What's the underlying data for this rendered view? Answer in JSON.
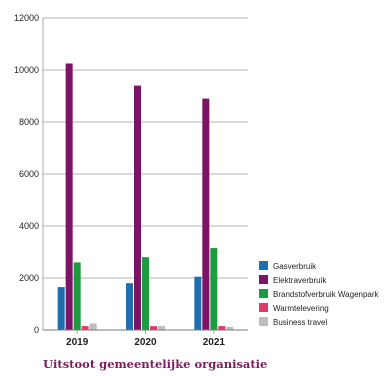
{
  "chart_data": {
    "type": "bar",
    "title": "Uitstoot gemeentelijke organisatie",
    "xlabel": "",
    "ylabel": "",
    "categories": [
      "2019",
      "2020",
      "2021"
    ],
    "ylim": [
      0,
      12000
    ],
    "yticks": [
      0,
      2000,
      4000,
      6000,
      8000,
      10000,
      12000
    ],
    "yticklabels": [
      "0",
      "2000",
      "4000",
      "6000",
      "8000",
      "10000",
      "12000"
    ],
    "grid": true,
    "legend_position": "bottom-right",
    "series": [
      {
        "name": "Gasverbruik",
        "color": "#1f6fb0",
        "values": [
          1650,
          1800,
          2050
        ]
      },
      {
        "name": "Elektraverbruik",
        "color": "#7b1466",
        "values": [
          10250,
          9400,
          8900
        ]
      },
      {
        "name": "Brandstofverbruik Wagenpark",
        "color": "#1e9a3f",
        "values": [
          2600,
          2800,
          3150
        ]
      },
      {
        "name": "Warmtelevering",
        "color": "#e03a6a",
        "values": [
          150,
          150,
          150
        ]
      },
      {
        "name": "Business travel",
        "color": "#bdbdbd",
        "values": [
          250,
          150,
          120
        ]
      }
    ]
  }
}
